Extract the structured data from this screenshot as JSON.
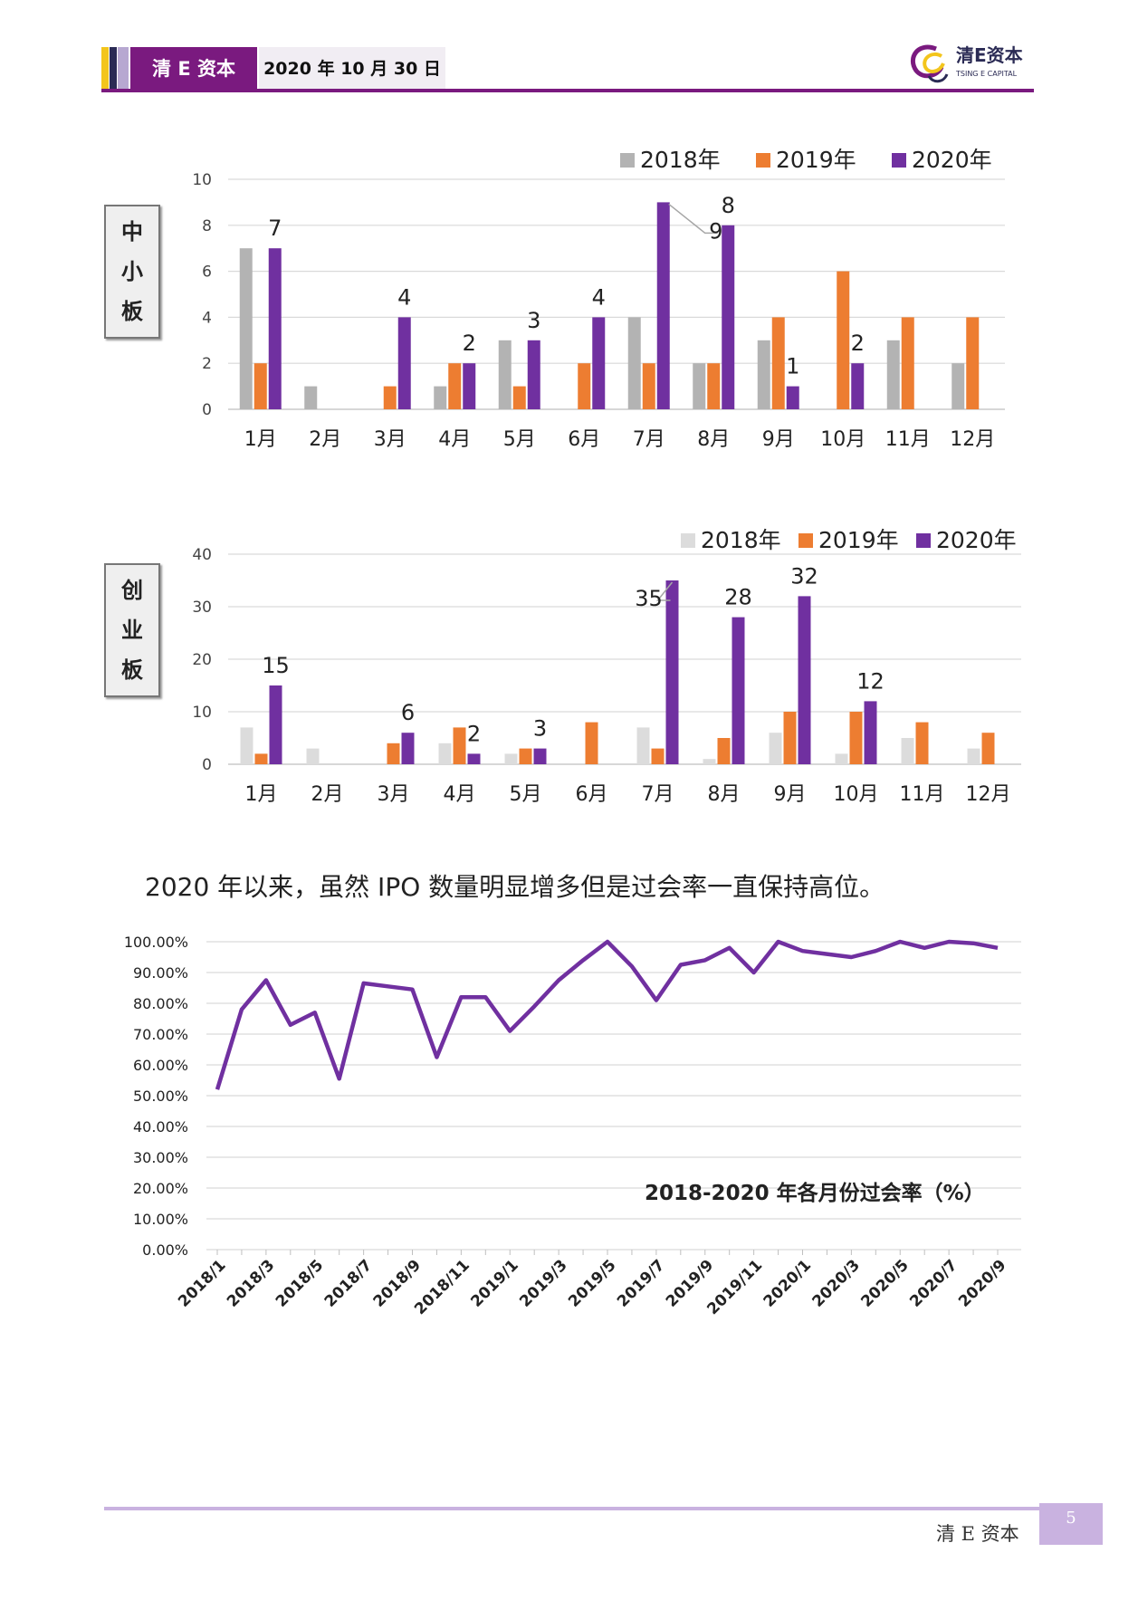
{
  "header": {
    "brand": "清 E 资本",
    "date": "2020 年 10 月 30 日",
    "logo_text": "清E资本",
    "logo_sub": "TSING E CAPITAL"
  },
  "footer": {
    "brand": "清 E 资本",
    "page": "5"
  },
  "board1_label": [
    "中",
    "小",
    "板"
  ],
  "board2_label": [
    "创",
    "业",
    "板"
  ],
  "caption": "2020 年以来，虽然 IPO 数量明显增多但是过会率一直保持高位。",
  "colors": {
    "s2018a": "#b3b3b3",
    "s2018b": "#dcdcdc",
    "s2019": "#ed7d31",
    "s2020": "#7030a0",
    "line": "#7030a0",
    "grid": "#d9d9d9",
    "brand": "#7a1a7f"
  },
  "chart_data": [
    {
      "type": "bar",
      "categories": [
        "1月",
        "2月",
        "3月",
        "4月",
        "5月",
        "6月",
        "7月",
        "8月",
        "9月",
        "10月",
        "11月",
        "12月"
      ],
      "ylim": [
        0,
        10
      ],
      "yticks": [
        "0",
        "2",
        "4",
        "6",
        "8",
        "10"
      ],
      "legend_position": "top-right",
      "series": [
        {
          "name": "2018年",
          "values": [
            7,
            1,
            0,
            1,
            3,
            0,
            4,
            2,
            3,
            0,
            3,
            2
          ]
        },
        {
          "name": "2019年",
          "values": [
            2,
            0,
            1,
            2,
            1,
            2,
            2,
            2,
            4,
            6,
            4,
            4
          ]
        },
        {
          "name": "2020年",
          "values": [
            7,
            0,
            4,
            2,
            3,
            4,
            9,
            8,
            1,
            2,
            null,
            null
          ]
        }
      ],
      "data_labels": [
        "7",
        "",
        "4",
        "2",
        "3",
        "4",
        "9",
        "8",
        "1",
        "2",
        "",
        ""
      ]
    },
    {
      "type": "bar",
      "categories": [
        "1月",
        "2月",
        "3月",
        "4月",
        "5月",
        "6月",
        "7月",
        "8月",
        "9月",
        "10月",
        "11月",
        "12月"
      ],
      "ylim": [
        0,
        40
      ],
      "yticks": [
        "0",
        "10",
        "20",
        "30",
        "40"
      ],
      "legend_position": "top-right",
      "series": [
        {
          "name": "2018年",
          "values": [
            7,
            3,
            0,
            4,
            2,
            0,
            7,
            1,
            6,
            2,
            5,
            3
          ]
        },
        {
          "name": "2019年",
          "values": [
            2,
            0,
            4,
            7,
            3,
            8,
            3,
            5,
            10,
            10,
            8,
            6
          ]
        },
        {
          "name": "2020年",
          "values": [
            15,
            0,
            6,
            2,
            3,
            0,
            35,
            28,
            32,
            12,
            null,
            null
          ]
        }
      ],
      "data_labels": [
        "15",
        "",
        "6",
        "2",
        "3",
        "",
        "35",
        "28",
        "32",
        "12",
        "",
        ""
      ]
    },
    {
      "type": "line",
      "title": "2018-2020 年各月份过会率（%）",
      "ylim": [
        0,
        100
      ],
      "yticks": [
        "0.00%",
        "10.00%",
        "20.00%",
        "30.00%",
        "40.00%",
        "50.00%",
        "60.00%",
        "70.00%",
        "80.00%",
        "90.00%",
        "100.00%"
      ],
      "x": [
        "2018/1",
        "2018/2",
        "2018/3",
        "2018/4",
        "2018/5",
        "2018/6",
        "2018/7",
        "2018/8",
        "2018/9",
        "2018/10",
        "2018/11",
        "2018/12",
        "2019/1",
        "2019/2",
        "2019/3",
        "2019/4",
        "2019/5",
        "2019/6",
        "2019/7",
        "2019/8",
        "2019/9",
        "2019/10",
        "2019/11",
        "2019/12",
        "2020/1",
        "2020/2",
        "2020/3",
        "2020/4",
        "2020/5",
        "2020/6",
        "2020/7",
        "2020/8",
        "2020/9"
      ],
      "xtick_labels": [
        "2018/1",
        "2018/3",
        "2018/5",
        "2018/7",
        "2018/9",
        "2018/11",
        "2019/1",
        "2019/3",
        "2019/5",
        "2019/7",
        "2019/9",
        "2019/11",
        "2020/1",
        "2020/3",
        "2020/5",
        "2020/7",
        "2020/9"
      ],
      "series": [
        {
          "values": [
            52,
            78,
            87.5,
            73,
            77,
            55.5,
            86.5,
            85.5,
            84.5,
            62.5,
            82,
            82,
            71,
            79,
            87.5,
            94,
            100,
            92,
            81,
            92.5,
            94,
            98,
            90,
            100,
            97,
            96,
            95,
            97,
            100,
            98,
            100,
            99.5,
            98
          ]
        }
      ]
    }
  ]
}
